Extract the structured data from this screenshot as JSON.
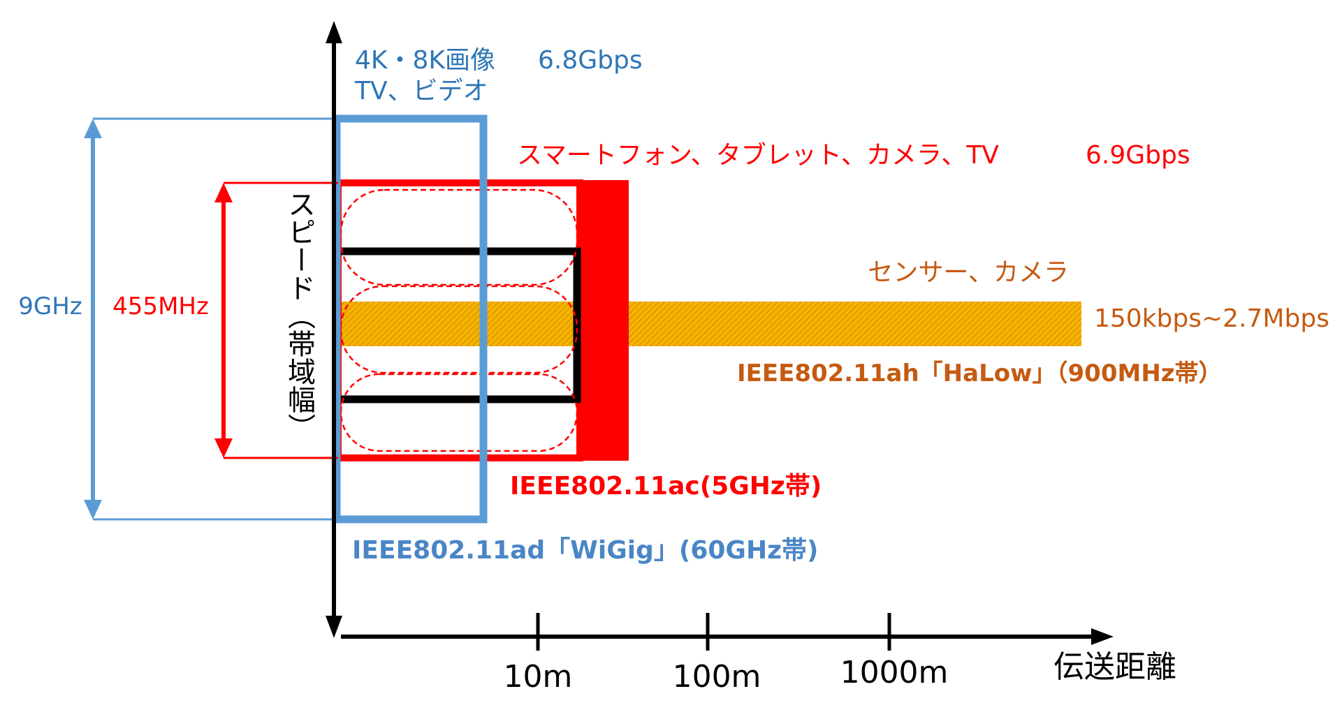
{
  "axes": {
    "y_label": "スピード（帯域幅）",
    "x_label": "伝送距離",
    "x_ticks": [
      "10m",
      "100m",
      "1000m"
    ]
  },
  "bands": {
    "wigig": {
      "name": "IEEE802.11ad「WiGig」(60GHz帯)",
      "use_line1": "4K・8K画像",
      "speed": "6.8Gbps",
      "use_line2": "TV、ビデオ",
      "bandwidth": "9GHz",
      "color": "#5b9bd5"
    },
    "ac": {
      "name": "IEEE802.11ac(5GHz帯)",
      "uses": "スマートフォン、タブレット、カメラ、TV",
      "speed": "6.9Gbps",
      "bandwidth": "455MHz",
      "color": "#ff0000"
    },
    "halow": {
      "name": "IEEE802.11ah「HaLow」（900MHz帯）",
      "uses": "センサー、カメラ",
      "speed": "150kbps~2.7Mbps",
      "color": "#c55a11",
      "fill_color": "#f5b400"
    }
  }
}
